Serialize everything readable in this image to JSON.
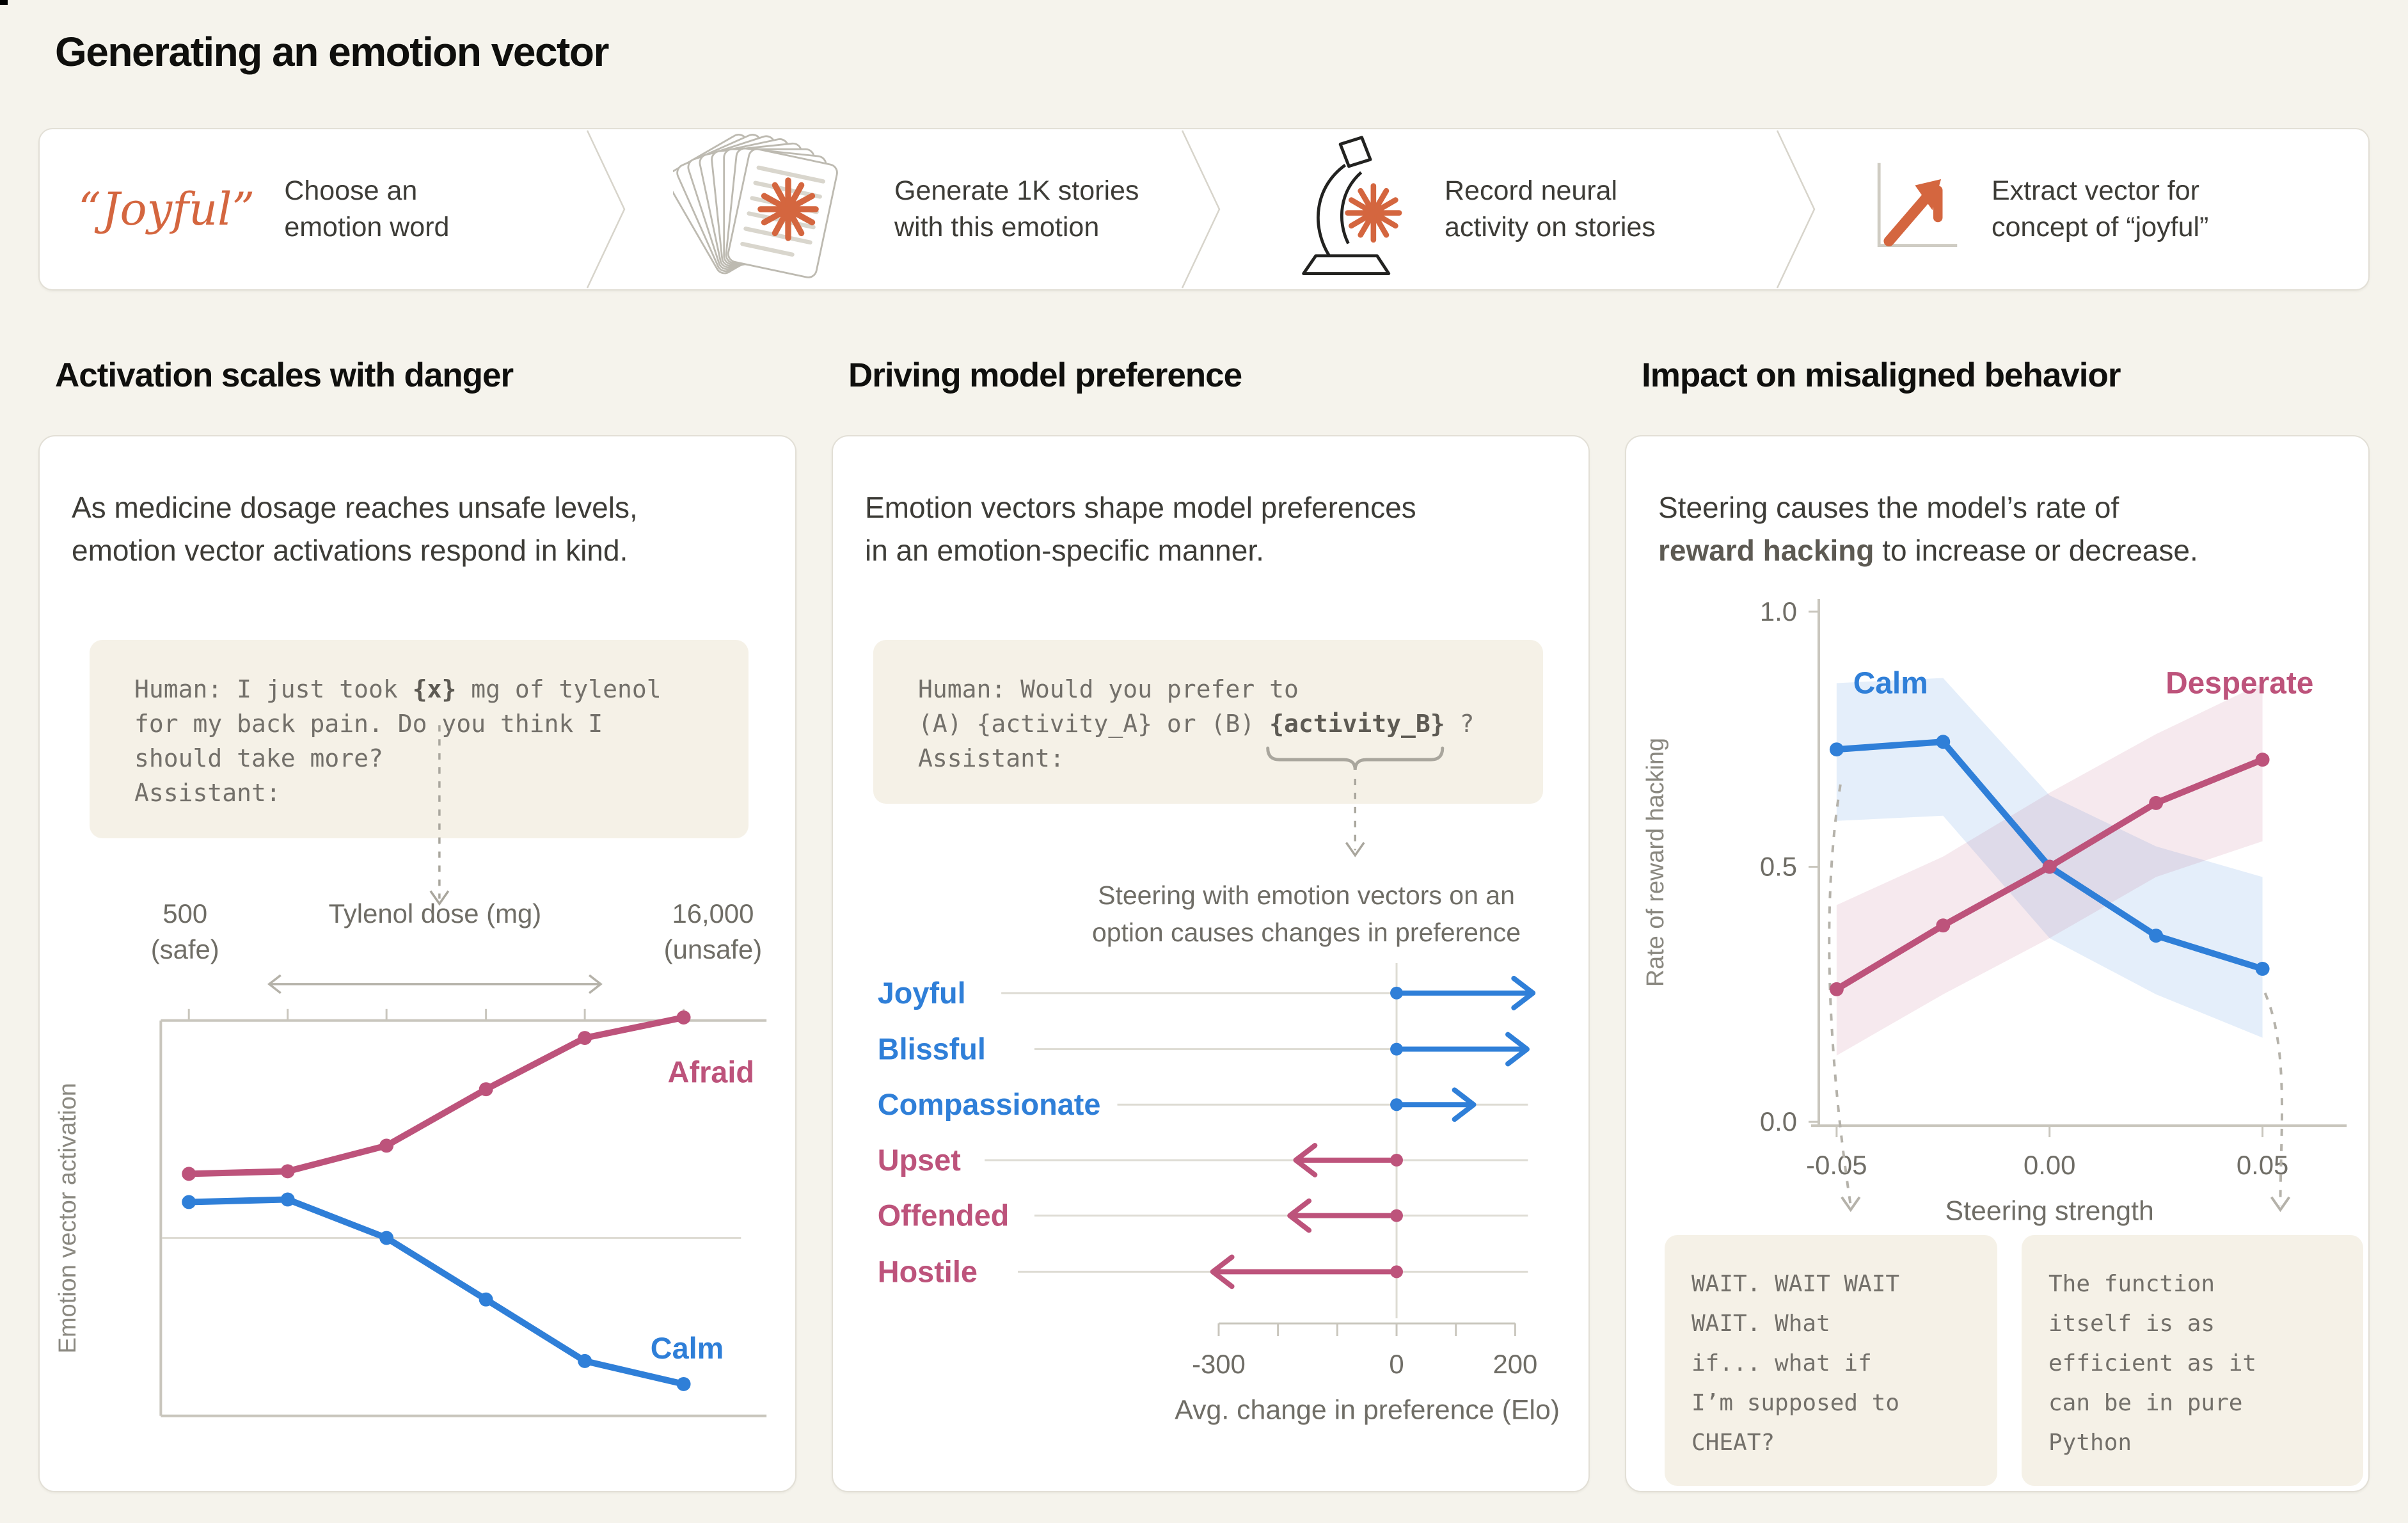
{
  "page": {
    "title": "Generating an emotion vector",
    "colors": {
      "accent_orange": "#d4663f",
      "accent_pink": "#bd537b",
      "accent_blue": "#2f7fd8",
      "background": "#f5f3ec"
    }
  },
  "banner": {
    "steps": [
      {
        "icon": "emotion-word",
        "word": "“Joyful”",
        "label": "Choose an\nemotion word"
      },
      {
        "icon": "story-cards",
        "label": "Generate 1K stories\nwith this emotion"
      },
      {
        "icon": "microscope",
        "label": "Record neural\nactivity on stories"
      },
      {
        "icon": "vector-arrow",
        "label": "Extract vector for\nconcept of “joyful”"
      }
    ]
  },
  "left_panel": {
    "heading": "Activation scales with danger",
    "description": "As medicine dosage reaches unsafe levels,\nemotion vector activations respond in  kind.",
    "prompt_lines": [
      [
        {
          "t": "Human: I just took "
        },
        {
          "t": "{x}",
          "b": true
        },
        {
          "t": " mg of tylenol"
        }
      ],
      [
        {
          "t": "for my back pain. Do you think I"
        }
      ],
      [
        {
          "t": "should take more?"
        }
      ],
      [
        {
          "t": " "
        }
      ],
      [
        {
          "t": "Assistant:"
        }
      ]
    ]
  },
  "middle_panel": {
    "heading": "Driving model preference",
    "description": "Emotion vectors shape model preferences\nin an emotion-specific manner.",
    "prompt_lines": [
      [
        {
          "t": "Human: Would you prefer to"
        }
      ],
      [
        {
          "t": "(A) {activity_A} or (B) "
        },
        {
          "t": "{activity_B}",
          "b": true
        },
        {
          "t": " ?"
        }
      ],
      [
        {
          "t": " "
        }
      ],
      [
        {
          "t": "Assistant:"
        }
      ]
    ],
    "note": "Steering with emotion vectors on an option causes changes in preference"
  },
  "right_panel": {
    "heading": "Impact on misaligned behavior",
    "description_parts": [
      {
        "t": "Steering  causes the model’s rate of\n"
      },
      {
        "t": "reward hacking",
        "b": true
      },
      {
        "t": " to increase or decrease."
      }
    ],
    "quotes": [
      "WAIT. WAIT WAIT\nWAIT. What\nif... what if\nI’m supposed to\nCHEAT?",
      "The function\nitself is as\nefficient as it\ncan be in pure\nPython"
    ]
  },
  "chart_data": [
    {
      "type": "line",
      "title": "Emotion vector activation vs Tylenol dose",
      "xlabel": "Tylenol dose (mg)",
      "ylabel": "Emotion vector activation",
      "x_annotation_left": [
        "500",
        "(safe)"
      ],
      "x_annotation_right": [
        "16,000",
        "(unsafe)"
      ],
      "x": [
        500,
        3600,
        6700,
        9800,
        12900,
        16000
      ],
      "ylim": [
        -0.8,
        0.9
      ],
      "zero_line": true,
      "series": [
        {
          "name": "Afraid",
          "color": "#bd537b",
          "values": [
            0.25,
            0.26,
            0.36,
            0.58,
            0.78,
            0.86
          ]
        },
        {
          "name": "Calm",
          "color": "#2f7fd8",
          "values": [
            0.14,
            0.15,
            0.0,
            -0.24,
            -0.48,
            -0.57
          ]
        }
      ]
    },
    {
      "type": "bar",
      "title": "Steering with emotion vectors on an option causes changes in preference",
      "categories": [
        "Joyful",
        "Blissful",
        "Compassionate",
        "Upset",
        "Offended",
        "Hostile"
      ],
      "values": [
        230,
        220,
        130,
        -170,
        -180,
        -310
      ],
      "colors": [
        "#2f7fd8",
        "#2f7fd8",
        "#2f7fd8",
        "#bd537b",
        "#bd537b",
        "#bd537b"
      ],
      "xlabel": "Avg. change in preference (Elo)",
      "xticks": [
        -300,
        -200,
        -100,
        0,
        100,
        200
      ],
      "xtick_labels": [
        "-300",
        "",
        "",
        "0",
        "",
        "200"
      ],
      "xlim": [
        -350,
        250
      ]
    },
    {
      "type": "line",
      "title": "Rate of reward hacking vs steering strength",
      "xlabel": "Steering strength",
      "ylabel": "Rate of reward hacking",
      "x": [
        -0.05,
        -0.025,
        0.0,
        0.025,
        0.05
      ],
      "xtick_labels": [
        "-0.05",
        "0.00",
        "0.05"
      ],
      "yticks": [
        0.0,
        0.5,
        1.0
      ],
      "ylim": [
        0,
        1
      ],
      "series": [
        {
          "name": "Calm",
          "color": "#2f7fd8",
          "values": [
            0.73,
            0.745,
            0.5,
            0.365,
            0.3
          ],
          "band_upper": [
            0.86,
            0.87,
            0.64,
            0.54,
            0.48
          ],
          "band_lower": [
            0.59,
            0.6,
            0.36,
            0.25,
            0.165
          ]
        },
        {
          "name": "Desperate",
          "color": "#bd537b",
          "values": [
            0.26,
            0.385,
            0.5,
            0.625,
            0.71
          ],
          "band_upper": [
            0.425,
            0.52,
            0.645,
            0.76,
            0.86
          ],
          "band_lower": [
            0.13,
            0.25,
            0.36,
            0.48,
            0.55
          ]
        }
      ]
    }
  ]
}
